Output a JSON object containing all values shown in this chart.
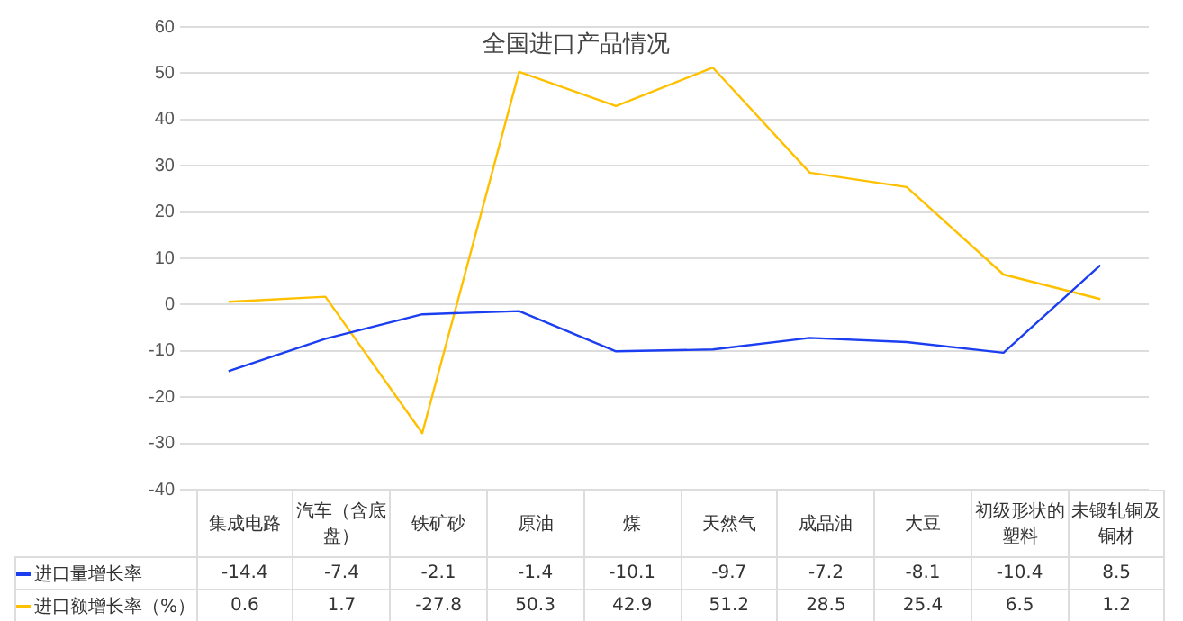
{
  "chart_data": {
    "type": "line",
    "title": "全国进口产品情况",
    "categories": [
      "集成电路",
      "汽车（含底盘）",
      "铁矿砂",
      "原油",
      "煤",
      "天然气",
      "成品油",
      "大豆",
      "初级形状的塑料",
      "未锻轧铜及铜材"
    ],
    "series": [
      {
        "name": "进口量增长率",
        "color": "#1a3ef0",
        "values": [
          -14.4,
          -7.4,
          -2.1,
          -1.4,
          -10.1,
          -9.7,
          -7.2,
          -8.1,
          -10.4,
          8.5
        ]
      },
      {
        "name": "进口额增长率（%）",
        "color": "#ffc000",
        "values": [
          0.6,
          1.7,
          -27.8,
          50.3,
          42.9,
          51.2,
          28.5,
          25.4,
          6.5,
          1.2
        ]
      }
    ],
    "ylim": [
      -40,
      60
    ],
    "yticks": [
      -40,
      -30,
      -20,
      -10,
      0,
      10,
      20,
      30,
      40,
      50,
      60
    ],
    "grid": "y",
    "marker": "none",
    "line_style": "solid",
    "data_labels": true,
    "legend": "bottom"
  }
}
